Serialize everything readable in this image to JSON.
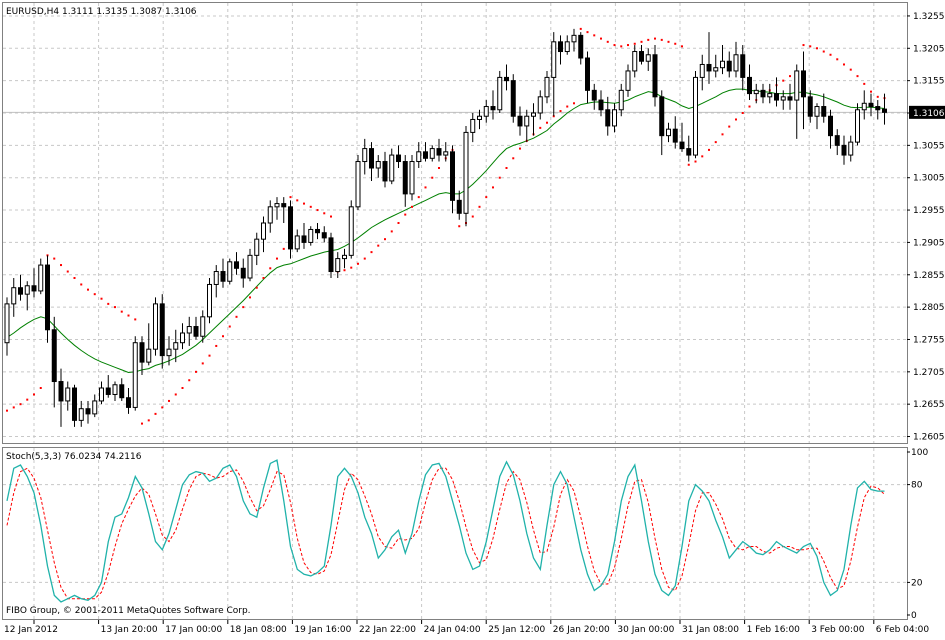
{
  "window": {
    "symbol_info": "EURUSD,H4  1.3111 1.3135 1.3087 1.3106",
    "indicator_label": "Stoch(5,3,3) 76.0234 74.2116",
    "copyright": "FIBO Group, © 2001-2011 MetaQuotes Software Corp.",
    "current_price_label": "1.3106"
  },
  "chart_data": {
    "type": "candlestick",
    "price_axis": {
      "ticks": [
        "1.3255",
        "1.3205",
        "1.3155",
        "1.3105",
        "1.3055",
        "1.3005",
        "1.2955",
        "1.2905",
        "1.2855",
        "1.2805",
        "1.2755",
        "1.2705",
        "1.2655",
        "1.2605"
      ],
      "ylim": [
        1.2595,
        1.3275
      ]
    },
    "time_axis": {
      "labels": [
        "12 Jan 2012",
        "13 Jan 20:00",
        "17 Jan 00:00",
        "18 Jan 08:00",
        "19 Jan 16:00",
        "22 Jan 22:00",
        "24 Jan 04:00",
        "25 Jan 12:00",
        "26 Jan 20:00",
        "30 Jan 00:00",
        "31 Jan 08:00",
        "1 Feb 16:00",
        "3 Feb 00:00",
        "6 Feb 04:00"
      ]
    },
    "current_price": 1.3106,
    "candles": [
      [
        1.275,
        1.282,
        1.273,
        1.281
      ],
      [
        1.281,
        1.285,
        1.279,
        1.2835
      ],
      [
        1.2835,
        1.2855,
        1.2815,
        1.2825
      ],
      [
        1.2825,
        1.2845,
        1.28,
        1.2838
      ],
      [
        1.2838,
        1.2865,
        1.282,
        1.283
      ],
      [
        1.283,
        1.288,
        1.2825,
        1.287
      ],
      [
        1.287,
        1.2885,
        1.275,
        1.277
      ],
      [
        1.277,
        1.279,
        1.265,
        1.269
      ],
      [
        1.269,
        1.271,
        1.262,
        1.266
      ],
      [
        1.266,
        1.269,
        1.2645,
        1.268
      ],
      [
        1.268,
        1.2685,
        1.262,
        1.263
      ],
      [
        1.263,
        1.266,
        1.262,
        1.2648
      ],
      [
        1.2648,
        1.266,
        1.2625,
        1.264
      ],
      [
        1.264,
        1.267,
        1.2635,
        1.266
      ],
      [
        1.266,
        1.269,
        1.2655,
        1.268
      ],
      [
        1.268,
        1.27,
        1.2665,
        1.267
      ],
      [
        1.267,
        1.269,
        1.266,
        1.2685
      ],
      [
        1.2685,
        1.2695,
        1.266,
        1.2665
      ],
      [
        1.2665,
        1.268,
        1.264,
        1.265
      ],
      [
        1.265,
        1.276,
        1.2645,
        1.275
      ],
      [
        1.275,
        1.276,
        1.27,
        1.272
      ],
      [
        1.272,
        1.278,
        1.2715,
        1.274
      ],
      [
        1.274,
        1.282,
        1.273,
        1.281
      ],
      [
        1.281,
        1.2825,
        1.271,
        1.273
      ],
      [
        1.273,
        1.276,
        1.2715,
        1.274
      ],
      [
        1.274,
        1.277,
        1.272,
        1.275
      ],
      [
        1.275,
        1.278,
        1.274,
        1.2765
      ],
      [
        1.2765,
        1.279,
        1.2745,
        1.2775
      ],
      [
        1.2775,
        1.279,
        1.2755,
        1.276
      ],
      [
        1.276,
        1.28,
        1.275,
        1.279
      ],
      [
        1.279,
        1.285,
        1.278,
        1.284
      ],
      [
        1.284,
        1.287,
        1.282,
        1.286
      ],
      [
        1.286,
        1.288,
        1.2835,
        1.2845
      ],
      [
        1.2845,
        1.288,
        1.284,
        1.2875
      ],
      [
        1.2875,
        1.289,
        1.2855,
        1.2865
      ],
      [
        1.2865,
        1.288,
        1.2835,
        1.285
      ],
      [
        1.285,
        1.2895,
        1.2845,
        1.2885
      ],
      [
        1.2885,
        1.292,
        1.287,
        1.291
      ],
      [
        1.291,
        1.2945,
        1.289,
        1.2935
      ],
      [
        1.2935,
        1.297,
        1.292,
        1.296
      ],
      [
        1.296,
        1.2975,
        1.294,
        1.2965
      ],
      [
        1.2965,
        1.2975,
        1.2935,
        1.296
      ],
      [
        1.296,
        1.297,
        1.288,
        1.2895
      ],
      [
        1.2895,
        1.2925,
        1.289,
        1.2915
      ],
      [
        1.2915,
        1.2935,
        1.2895,
        1.2905
      ],
      [
        1.2905,
        1.293,
        1.29,
        1.2925
      ],
      [
        1.2925,
        1.2935,
        1.291,
        1.292
      ],
      [
        1.292,
        1.293,
        1.2905,
        1.2912
      ],
      [
        1.2912,
        1.292,
        1.285,
        1.286
      ],
      [
        1.286,
        1.289,
        1.285,
        1.288
      ],
      [
        1.288,
        1.2895,
        1.2865,
        1.2885
      ],
      [
        1.2885,
        1.297,
        1.288,
        1.296
      ],
      [
        1.296,
        1.304,
        1.2955,
        1.303
      ],
      [
        1.303,
        1.3065,
        1.301,
        1.305
      ],
      [
        1.305,
        1.306,
        1.3,
        1.302
      ],
      [
        1.302,
        1.304,
        1.3005,
        1.303
      ],
      [
        1.303,
        1.3045,
        1.299,
        1.3
      ],
      [
        1.3,
        1.305,
        1.2995,
        1.304
      ],
      [
        1.304,
        1.3055,
        1.302,
        1.303
      ],
      [
        1.303,
        1.304,
        1.296,
        1.298
      ],
      [
        1.298,
        1.304,
        1.297,
        1.303
      ],
      [
        1.303,
        1.306,
        1.302,
        1.3045
      ],
      [
        1.3045,
        1.306,
        1.303,
        1.3035
      ],
      [
        1.3035,
        1.3055,
        1.303,
        1.305
      ],
      [
        1.305,
        1.3065,
        1.303,
        1.304
      ],
      [
        1.304,
        1.306,
        1.303,
        1.3045
      ],
      [
        1.3045,
        1.3055,
        1.295,
        1.297
      ],
      [
        1.297,
        1.2985,
        1.294,
        1.295
      ],
      [
        1.295,
        1.3085,
        1.293,
        1.3075
      ],
      [
        1.3075,
        1.3105,
        1.306,
        1.3095
      ],
      [
        1.3095,
        1.311,
        1.308,
        1.31
      ],
      [
        1.31,
        1.3125,
        1.309,
        1.3115
      ],
      [
        1.3115,
        1.314,
        1.3095,
        1.311
      ],
      [
        1.311,
        1.317,
        1.3105,
        1.316
      ],
      [
        1.316,
        1.318,
        1.314,
        1.3155
      ],
      [
        1.3155,
        1.3165,
        1.309,
        1.31
      ],
      [
        1.31,
        1.3115,
        1.307,
        1.3085
      ],
      [
        1.3085,
        1.311,
        1.306,
        1.31
      ],
      [
        1.31,
        1.312,
        1.307,
        1.3105
      ],
      [
        1.3105,
        1.314,
        1.3095,
        1.313
      ],
      [
        1.313,
        1.317,
        1.312,
        1.316
      ],
      [
        1.316,
        1.323,
        1.31,
        1.3215
      ],
      [
        1.3215,
        1.3225,
        1.318,
        1.32
      ],
      [
        1.32,
        1.3225,
        1.3195,
        1.3215
      ],
      [
        1.3215,
        1.3235,
        1.32,
        1.3225
      ],
      [
        1.3225,
        1.323,
        1.318,
        1.319
      ],
      [
        1.319,
        1.32,
        1.312,
        1.314
      ],
      [
        1.314,
        1.315,
        1.311,
        1.3125
      ],
      [
        1.3125,
        1.314,
        1.31,
        1.311
      ],
      [
        1.311,
        1.313,
        1.307,
        1.3085
      ],
      [
        1.3085,
        1.312,
        1.3075,
        1.311
      ],
      [
        1.311,
        1.315,
        1.31,
        1.314
      ],
      [
        1.314,
        1.318,
        1.313,
        1.317
      ],
      [
        1.317,
        1.321,
        1.316,
        1.32
      ],
      [
        1.32,
        1.321,
        1.318,
        1.3185
      ],
      [
        1.3185,
        1.3205,
        1.317,
        1.3195
      ],
      [
        1.3195,
        1.321,
        1.3115,
        1.313
      ],
      [
        1.313,
        1.314,
        1.304,
        1.307
      ],
      [
        1.307,
        1.309,
        1.306,
        1.308
      ],
      [
        1.308,
        1.31,
        1.305,
        1.306
      ],
      [
        1.306,
        1.309,
        1.3045,
        1.305
      ],
      [
        1.305,
        1.307,
        1.303,
        1.304
      ],
      [
        1.304,
        1.317,
        1.3035,
        1.316
      ],
      [
        1.316,
        1.3195,
        1.314,
        1.318
      ],
      [
        1.318,
        1.323,
        1.315,
        1.317
      ],
      [
        1.317,
        1.3195,
        1.316,
        1.3175
      ],
      [
        1.3175,
        1.321,
        1.3165,
        1.3185
      ],
      [
        1.3185,
        1.32,
        1.316,
        1.317
      ],
      [
        1.317,
        1.3215,
        1.316,
        1.3195
      ],
      [
        1.3195,
        1.321,
        1.314,
        1.316
      ],
      [
        1.316,
        1.318,
        1.3125,
        1.3135
      ],
      [
        1.3135,
        1.315,
        1.312,
        1.314
      ],
      [
        1.314,
        1.315,
        1.312,
        1.313
      ],
      [
        1.313,
        1.315,
        1.312,
        1.3135
      ],
      [
        1.3135,
        1.316,
        1.3115,
        1.3125
      ],
      [
        1.3125,
        1.314,
        1.311,
        1.313
      ],
      [
        1.313,
        1.315,
        1.311,
        1.3125
      ],
      [
        1.3125,
        1.318,
        1.3065,
        1.317
      ],
      [
        1.317,
        1.32,
        1.308,
        1.313
      ],
      [
        1.313,
        1.314,
        1.309,
        1.31
      ],
      [
        1.31,
        1.312,
        1.308,
        1.3115
      ],
      [
        1.3115,
        1.3135,
        1.309,
        1.31
      ],
      [
        1.31,
        1.311,
        1.305,
        1.307
      ],
      [
        1.307,
        1.308,
        1.304,
        1.3055
      ],
      [
        1.3055,
        1.307,
        1.3025,
        1.304
      ],
      [
        1.304,
        1.307,
        1.303,
        1.306
      ],
      [
        1.306,
        1.312,
        1.3055,
        1.311
      ],
      [
        1.311,
        1.314,
        1.3095,
        1.312
      ],
      [
        1.312,
        1.3135,
        1.31,
        1.3115
      ],
      [
        1.3115,
        1.3125,
        1.3095,
        1.311
      ],
      [
        1.3111,
        1.3135,
        1.3087,
        1.3106
      ]
    ],
    "moving_average": [
      1.2758,
      1.2765,
      1.2773,
      1.278,
      1.2786,
      1.279,
      1.2787,
      1.2776,
      1.2765,
      1.2755,
      1.2746,
      1.2738,
      1.2731,
      1.2725,
      1.272,
      1.2716,
      1.2712,
      1.2708,
      1.2704,
      1.2705,
      1.2708,
      1.271,
      1.2715,
      1.2718,
      1.2722,
      1.2727,
      1.2732,
      1.2739,
      1.2746,
      1.2755,
      1.2765,
      1.2775,
      1.2785,
      1.2795,
      1.2805,
      1.2815,
      1.2826,
      1.2837,
      1.2848,
      1.2858,
      1.2866,
      1.287,
      1.2872,
      1.2876,
      1.288,
      1.2884,
      1.2887,
      1.289,
      1.2892,
      1.2894,
      1.2899,
      1.2905,
      1.2912,
      1.292,
      1.2928,
      1.2934,
      1.294,
      1.2945,
      1.295,
      1.2955,
      1.296,
      1.2965,
      1.297,
      1.2975,
      1.298,
      1.2982,
      1.298,
      1.298,
      1.2986,
      1.2995,
      1.3005,
      1.3016,
      1.3028,
      1.304,
      1.305,
      1.3055,
      1.3058,
      1.3062,
      1.3066,
      1.3072,
      1.3078,
      1.3088,
      1.3096,
      1.3105,
      1.3112,
      1.3118,
      1.312,
      1.3122,
      1.3122,
      1.3121,
      1.312,
      1.3122,
      1.3125,
      1.313,
      1.3134,
      1.3138,
      1.3136,
      1.313,
      1.3126,
      1.3122,
      1.3116,
      1.3112,
      1.3115,
      1.312,
      1.3125,
      1.313,
      1.3136,
      1.314,
      1.3142,
      1.3142,
      1.314,
      1.3139,
      1.3138,
      1.3137,
      1.3135,
      1.3135,
      1.3135,
      1.3137,
      1.3137,
      1.3135,
      1.3133,
      1.313,
      1.3126,
      1.3122,
      1.3117,
      1.3114,
      1.3113,
      1.3114,
      1.3114,
      1.3113,
      1.3112
    ],
    "parabolic_sar": [
      1.2645,
      1.265,
      1.2655,
      1.2662,
      1.267,
      1.268,
      1.2885,
      1.288,
      1.287,
      1.286,
      1.285,
      1.284,
      1.2832,
      1.2825,
      1.2818,
      1.281,
      1.2805,
      1.2798,
      1.2792,
      1.2786,
      1.2625,
      1.263,
      1.264,
      1.265,
      1.266,
      1.267,
      1.268,
      1.2692,
      1.2705,
      1.2718,
      1.273,
      1.2745,
      1.276,
      1.2775,
      1.279,
      1.2805,
      1.282,
      1.2835,
      1.285,
      1.2865,
      1.288,
      1.2895,
      1.2975,
      1.297,
      1.2965,
      1.296,
      1.2955,
      1.295,
      1.2945,
      1.286,
      1.2862,
      1.2866,
      1.2872,
      1.288,
      1.289,
      1.29,
      1.291,
      1.2922,
      1.2935,
      1.2948,
      1.296,
      1.2975,
      1.299,
      1.3005,
      1.302,
      1.3035,
      1.3048,
      1.293,
      1.2935,
      1.2945,
      1.296,
      1.2975,
      1.299,
      1.3005,
      1.302,
      1.3035,
      1.305,
      1.3062,
      1.3072,
      1.3082,
      1.309,
      1.31,
      1.3108,
      1.3115,
      1.312,
      1.3235,
      1.323,
      1.3225,
      1.322,
      1.3215,
      1.321,
      1.3208,
      1.321,
      1.3212,
      1.3215,
      1.3218,
      1.322,
      1.3218,
      1.3215,
      1.3212,
      1.3208,
      1.3025,
      1.303,
      1.3038,
      1.3048,
      1.306,
      1.3072,
      1.3084,
      1.3095,
      1.3105,
      1.3115,
      1.3125,
      1.3133,
      1.314,
      1.3148,
      1.3155,
      1.3162,
      1.3168,
      1.321,
      1.3208,
      1.3205,
      1.32,
      1.3195,
      1.3188,
      1.318,
      1.3172,
      1.3162,
      1.315,
      1.3138,
      1.313,
      1.3128
    ],
    "stochastic": {
      "axis_ticks": [
        "100",
        "80",
        "20",
        "0"
      ],
      "ylim": [
        0,
        100
      ],
      "levels": [
        80,
        20
      ],
      "k": [
        70,
        90,
        92,
        85,
        75,
        55,
        30,
        12,
        8,
        10,
        12,
        10,
        9,
        12,
        20,
        45,
        60,
        62,
        72,
        85,
        78,
        62,
        45,
        40,
        50,
        65,
        80,
        86,
        88,
        87,
        82,
        84,
        90,
        92,
        85,
        70,
        62,
        60,
        78,
        93,
        95,
        70,
        42,
        28,
        25,
        24,
        26,
        30,
        55,
        85,
        90,
        85,
        75,
        60,
        50,
        35,
        40,
        48,
        52,
        38,
        50,
        70,
        86,
        92,
        93,
        85,
        70,
        55,
        38,
        28,
        30,
        45,
        65,
        85,
        94,
        86,
        70,
        50,
        35,
        28,
        55,
        80,
        88,
        80,
        60,
        40,
        25,
        15,
        18,
        25,
        45,
        70,
        85,
        92,
        70,
        45,
        25,
        15,
        12,
        18,
        42,
        70,
        80,
        76,
        70,
        58,
        48,
        35,
        40,
        45,
        42,
        38,
        37,
        40,
        45,
        42,
        40,
        38,
        42,
        44,
        36,
        20,
        12,
        15,
        28,
        55,
        78,
        82,
        77,
        76,
        76
      ],
      "d": [
        55,
        75,
        88,
        90,
        84,
        72,
        52,
        32,
        17,
        10,
        10,
        10,
        10,
        10,
        14,
        26,
        42,
        56,
        65,
        73,
        78,
        74,
        62,
        49,
        45,
        52,
        65,
        77,
        85,
        87,
        86,
        84,
        85,
        88,
        89,
        82,
        72,
        64,
        67,
        77,
        88,
        86,
        69,
        47,
        32,
        26,
        25,
        27,
        37,
        57,
        77,
        87,
        83,
        73,
        62,
        48,
        42,
        41,
        47,
        46,
        47,
        53,
        69,
        83,
        90,
        90,
        83,
        70,
        54,
        40,
        32,
        34,
        47,
        65,
        81,
        88,
        83,
        69,
        52,
        38,
        39,
        54,
        74,
        83,
        76,
        60,
        42,
        27,
        19,
        19,
        29,
        47,
        67,
        82,
        83,
        69,
        47,
        28,
        17,
        15,
        24,
        43,
        64,
        75,
        75,
        68,
        59,
        47,
        41,
        40,
        42,
        42,
        39,
        38,
        41,
        42,
        42,
        40,
        40,
        41,
        41,
        33,
        23,
        16,
        18,
        33,
        54,
        72,
        79,
        78,
        74
      ]
    }
  }
}
